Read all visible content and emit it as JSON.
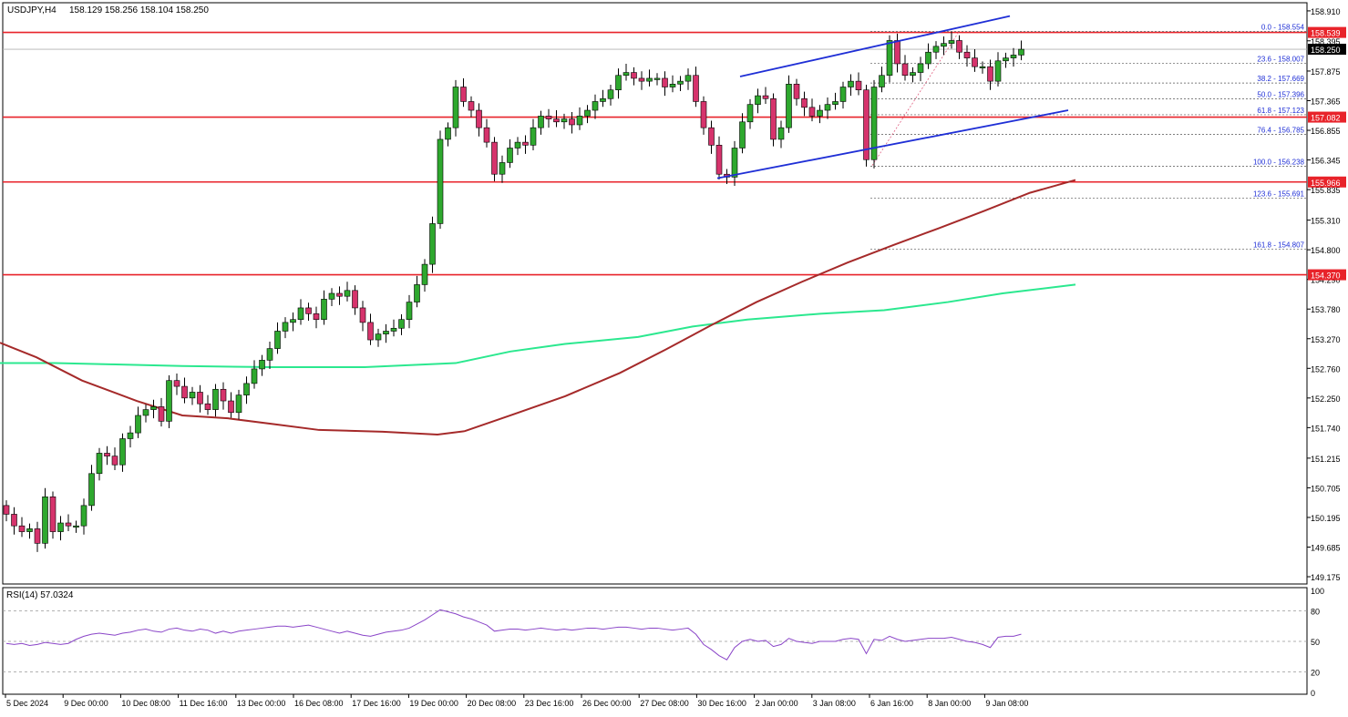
{
  "header": {
    "symbol_timeframe": "USDJPY,H4",
    "ohlc": "158.129 158.256 158.104 158.250"
  },
  "price_axis": {
    "ticks": [
      "158.910",
      "158.395",
      "157.875",
      "157.365",
      "156.855",
      "156.345",
      "155.835",
      "155.310",
      "154.800",
      "154.290",
      "153.780",
      "153.270",
      "152.760",
      "152.250",
      "151.740",
      "151.215",
      "150.705",
      "150.195",
      "149.685",
      "149.175"
    ]
  },
  "time_axis": {
    "labels": [
      "5 Dec 2024",
      "9 Dec 00:00",
      "10 Dec 08:00",
      "11 Dec 16:00",
      "13 Dec 00:00",
      "16 Dec 08:00",
      "17 Dec 16:00",
      "19 Dec 00:00",
      "20 Dec 08:00",
      "23 Dec 16:00",
      "26 Dec 00:00",
      "27 Dec 08:00",
      "30 Dec 16:00",
      "2 Jan 00:00",
      "3 Jan 08:00",
      "6 Jan 16:00",
      "8 Jan 00:00",
      "9 Jan 08:00"
    ]
  },
  "price_tags": {
    "current": "158.250",
    "lines": [
      "158.539",
      "157.082",
      "155.966",
      "154.370"
    ]
  },
  "fibonacci": {
    "levels": [
      {
        "label": "0.0 - 158.554",
        "value": 158.554
      },
      {
        "label": "23.6 - 158.007",
        "value": 158.007
      },
      {
        "label": "38.2 - 157.669",
        "value": 157.669
      },
      {
        "label": "50.0 - 157.396",
        "value": 157.396
      },
      {
        "label": "61.8 - 157.123",
        "value": 157.123
      },
      {
        "label": "76.4 - 156.785",
        "value": 156.785
      },
      {
        "label": "100.0 - 156.238",
        "value": 156.238
      },
      {
        "label": "123.6 - 155.691",
        "value": 155.691
      },
      {
        "label": "161.8 - 154.807",
        "value": 154.807
      }
    ]
  },
  "rsi": {
    "label": "RSI(14) 57.0324",
    "ticks": [
      "100",
      "80",
      "50",
      "20",
      "0"
    ]
  },
  "colors": {
    "bull": "#2ea82e",
    "bear": "#d6336c",
    "level": "#e8232a",
    "channel": "#1f2fd6",
    "ma_fast": "#a52a2a",
    "ma_slow": "#2be88f",
    "rsi_line": "#8a45c8"
  },
  "chart_data": {
    "type": "candlestick",
    "ylim": [
      149.05,
      159.05
    ],
    "horizontal_levels": [
      158.539,
      157.082,
      155.966,
      154.37
    ],
    "current_price": 158.25,
    "closes": [
      150.25,
      150.05,
      149.95,
      150.0,
      149.75,
      150.55,
      149.95,
      150.1,
      150.05,
      150.05,
      150.4,
      150.95,
      151.3,
      151.25,
      151.1,
      151.55,
      151.65,
      151.95,
      152.05,
      152.1,
      151.85,
      152.55,
      152.45,
      152.25,
      152.35,
      152.15,
      152.05,
      152.4,
      152.2,
      152.0,
      152.3,
      152.5,
      152.75,
      152.9,
      153.1,
      153.4,
      153.55,
      153.6,
      153.8,
      153.7,
      153.6,
      153.95,
      154.05,
      154.0,
      154.1,
      153.8,
      153.55,
      153.25,
      153.35,
      153.4,
      153.45,
      153.6,
      153.9,
      154.2,
      154.55,
      155.25,
      156.7,
      156.9,
      157.6,
      157.35,
      157.2,
      156.9,
      156.65,
      156.1,
      156.3,
      156.55,
      156.65,
      156.6,
      156.9,
      157.1,
      157.05,
      157.0,
      157.05,
      156.95,
      157.1,
      157.2,
      157.35,
      157.4,
      157.55,
      157.8,
      157.85,
      157.75,
      157.7,
      157.75,
      157.75,
      157.6,
      157.65,
      157.7,
      157.8,
      157.35,
      156.9,
      156.6,
      156.1,
      156.05,
      156.55,
      157.0,
      157.3,
      157.45,
      157.4,
      156.7,
      156.9,
      157.65,
      157.4,
      157.25,
      157.1,
      157.2,
      157.3,
      157.35,
      157.6,
      157.7,
      157.55,
      156.35,
      157.6,
      157.8,
      158.4,
      158.0,
      157.8,
      157.85,
      158.0,
      158.2,
      158.3,
      158.35,
      158.4,
      158.2,
      158.1,
      157.95,
      157.95,
      157.7,
      158.05,
      158.1,
      158.15,
      158.25
    ],
    "rsi_values": [
      48,
      47,
      48,
      46,
      47,
      49,
      48,
      47,
      48,
      52,
      55,
      57,
      58,
      57,
      56,
      58,
      59,
      61,
      62,
      60,
      59,
      62,
      63,
      61,
      60,
      62,
      61,
      58,
      60,
      58,
      60,
      61,
      62,
      63,
      64,
      65,
      65,
      64,
      65,
      66,
      64,
      62,
      60,
      58,
      60,
      58,
      56,
      55,
      57,
      59,
      60,
      61,
      63,
      67,
      71,
      76,
      81,
      79,
      77,
      74,
      72,
      69,
      66,
      60,
      61,
      62,
      62,
      61,
      62,
      63,
      62,
      61,
      62,
      61,
      62,
      63,
      63,
      62,
      63,
      64,
      64,
      63,
      62,
      63,
      63,
      62,
      61,
      62,
      63,
      57,
      47,
      42,
      36,
      32,
      44,
      50,
      52,
      50,
      51,
      45,
      47,
      53,
      50,
      49,
      48,
      50,
      50,
      50,
      52,
      53,
      52,
      38,
      52,
      51,
      55,
      52,
      50,
      51,
      52,
      53,
      53,
      53,
      54,
      52,
      50,
      49,
      47,
      44,
      54,
      55,
      55,
      57
    ],
    "fast_ma": [
      [
        0,
        153.2
      ],
      [
        40,
        152.95
      ],
      [
        90,
        152.55
      ],
      [
        150,
        152.2
      ],
      [
        200,
        151.95
      ],
      [
        250,
        151.9
      ],
      [
        300,
        151.8
      ],
      [
        350,
        151.7
      ],
      [
        420,
        151.67
      ],
      [
        480,
        151.62
      ],
      [
        510,
        151.68
      ],
      [
        560,
        151.95
      ],
      [
        620,
        152.28
      ],
      [
        680,
        152.68
      ],
      [
        730,
        153.08
      ],
      [
        780,
        153.5
      ],
      [
        830,
        153.9
      ],
      [
        880,
        154.25
      ],
      [
        930,
        154.58
      ],
      [
        980,
        154.88
      ],
      [
        1030,
        155.17
      ],
      [
        1080,
        155.47
      ],
      [
        1130,
        155.78
      ],
      [
        1180,
        156.0
      ]
    ],
    "slow_ma": [
      [
        0,
        152.85
      ],
      [
        60,
        152.85
      ],
      [
        120,
        152.83
      ],
      [
        200,
        152.8
      ],
      [
        300,
        152.78
      ],
      [
        400,
        152.78
      ],
      [
        500,
        152.85
      ],
      [
        560,
        153.05
      ],
      [
        620,
        153.18
      ],
      [
        700,
        153.3
      ],
      [
        760,
        153.48
      ],
      [
        820,
        153.6
      ],
      [
        900,
        153.7
      ],
      [
        970,
        153.76
      ],
      [
        1040,
        153.9
      ],
      [
        1100,
        154.05
      ],
      [
        1180,
        154.2
      ]
    ],
    "channel_lines": [
      [
        [
          812,
          157.78
        ],
        [
          1108,
          158.82
        ]
      ],
      [
        [
          787,
          156.03
        ],
        [
          1172,
          157.2
        ]
      ]
    ]
  }
}
